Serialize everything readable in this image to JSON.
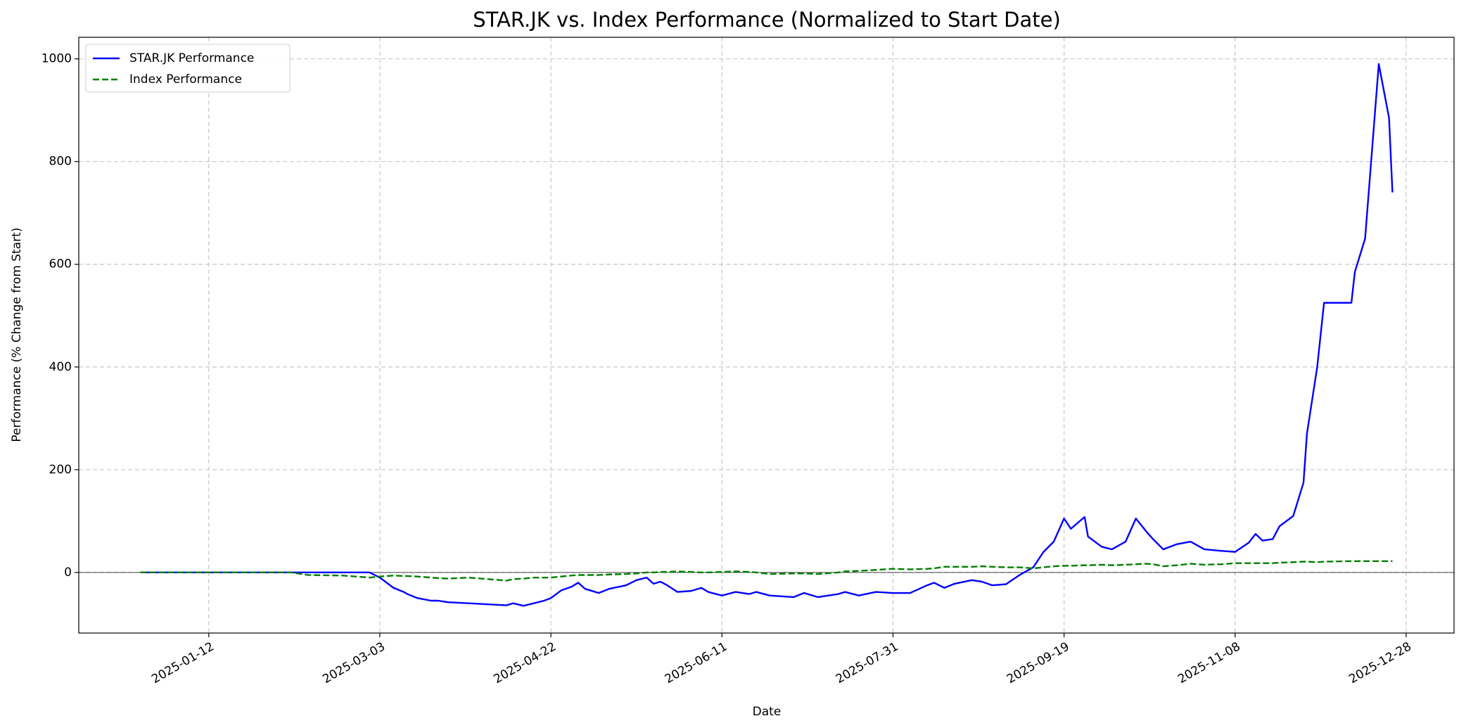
{
  "chart_data": {
    "type": "line",
    "title": "STAR.JK vs. Index Performance (Normalized to Start Date)",
    "xlabel": "Date",
    "ylabel": "Performance (% Change from Start)",
    "x": [
      "2024-12-23",
      "2025-01-20",
      "2025-02-05",
      "2025-02-10",
      "2025-02-20",
      "2025-02-28",
      "2025-03-03",
      "2025-03-07",
      "2025-03-10",
      "2025-03-11",
      "2025-03-14",
      "2025-03-18",
      "2025-03-20",
      "2025-03-23",
      "2025-03-29",
      "2025-04-09",
      "2025-04-11",
      "2025-04-14",
      "2025-04-17",
      "2025-04-20",
      "2025-04-22",
      "2025-04-25",
      "2025-04-28",
      "2025-04-30",
      "2025-05-02",
      "2025-05-06",
      "2025-05-09",
      "2025-05-14",
      "2025-05-17",
      "2025-05-20",
      "2025-05-22",
      "2025-05-24",
      "2025-05-26",
      "2025-05-29",
      "2025-06-02",
      "2025-06-05",
      "2025-06-07",
      "2025-06-11",
      "2025-06-15",
      "2025-06-19",
      "2025-06-21",
      "2025-06-25",
      "2025-07-02",
      "2025-07-05",
      "2025-07-09",
      "2025-07-15",
      "2025-07-17",
      "2025-07-21",
      "2025-07-26",
      "2025-07-31",
      "2025-08-05",
      "2025-08-10",
      "2025-08-12",
      "2025-08-15",
      "2025-08-18",
      "2025-08-23",
      "2025-08-26",
      "2025-08-29",
      "2025-09-02",
      "2025-09-06",
      "2025-09-10",
      "2025-09-13",
      "2025-09-16",
      "2025-09-19",
      "2025-09-21",
      "2025-09-25",
      "2025-09-26",
      "2025-09-30",
      "2025-10-03",
      "2025-10-07",
      "2025-10-10",
      "2025-10-13",
      "2025-10-15",
      "2025-10-18",
      "2025-10-22",
      "2025-10-26",
      "2025-10-30",
      "2025-11-04",
      "2025-11-08",
      "2025-11-12",
      "2025-11-14",
      "2025-11-16",
      "2025-11-19",
      "2025-11-21",
      "2025-11-25",
      "2025-11-28",
      "2025-11-29",
      "2025-12-02",
      "2025-12-04",
      "2025-12-12",
      "2025-12-13",
      "2025-12-16",
      "2025-12-20",
      "2025-12-23",
      "2025-12-24"
    ],
    "series": [
      {
        "name": "STAR.JK Performance",
        "color": "#0000ff",
        "linestyle": "solid",
        "values": [
          0,
          0,
          0,
          0,
          0,
          0,
          -10,
          -30,
          -38,
          -42,
          -50,
          -55,
          -55,
          -58,
          -60,
          -64,
          -60,
          -65,
          -60,
          -55,
          -50,
          -35,
          -28,
          -20,
          -32,
          -40,
          -32,
          -25,
          -15,
          -10,
          -22,
          -18,
          -25,
          -38,
          -36,
          -30,
          -38,
          -45,
          -38,
          -42,
          -38,
          -45,
          -48,
          -40,
          -48,
          -42,
          -38,
          -45,
          -38,
          -40,
          -40,
          -25,
          -20,
          -30,
          -22,
          -15,
          -18,
          -25,
          -23,
          -5,
          10,
          40,
          60,
          105,
          85,
          108,
          70,
          50,
          45,
          60,
          105,
          80,
          65,
          45,
          55,
          60,
          45,
          42,
          40,
          58,
          75,
          62,
          65,
          90,
          110,
          175,
          270,
          400,
          525,
          525,
          585,
          650,
          990,
          885,
          740
        ]
      },
      {
        "name": "Index Performance",
        "color": "#008000",
        "linestyle": "dashed",
        "values": [
          0,
          0,
          0,
          -5,
          -6,
          -10,
          -8,
          -6,
          -7,
          -7,
          -8,
          -10,
          -11,
          -12,
          -10,
          -16,
          -13,
          -12,
          -10,
          -10,
          -10,
          -8,
          -6,
          -5,
          -5,
          -5,
          -4,
          -3,
          -2,
          0,
          0,
          1,
          1,
          2,
          1,
          0,
          0,
          1,
          2,
          1,
          0,
          -3,
          -2,
          -2,
          -3,
          0,
          2,
          3,
          5,
          7,
          6,
          7,
          8,
          11,
          11,
          11,
          12,
          11,
          10,
          10,
          8,
          10,
          12,
          13,
          13,
          14,
          14,
          15,
          14,
          15,
          16,
          17,
          16,
          12,
          14,
          17,
          15,
          16,
          18,
          18,
          18,
          18,
          18,
          19,
          20,
          21,
          21,
          20,
          21,
          22,
          22,
          22,
          22,
          22,
          22
        ]
      }
    ],
    "xlim": [
      "2024-12-05",
      "2026-01-11"
    ],
    "xticks": [
      "2025-01-12",
      "2025-03-03",
      "2025-04-22",
      "2025-06-11",
      "2025-07-31",
      "2025-09-19",
      "2025-11-08",
      "2025-12-28"
    ],
    "ylim": [
      -118,
      1042
    ],
    "yticks": [
      0,
      200,
      400,
      600,
      800,
      1000
    ],
    "hline": 0,
    "grid": true,
    "legend": "upper left"
  }
}
